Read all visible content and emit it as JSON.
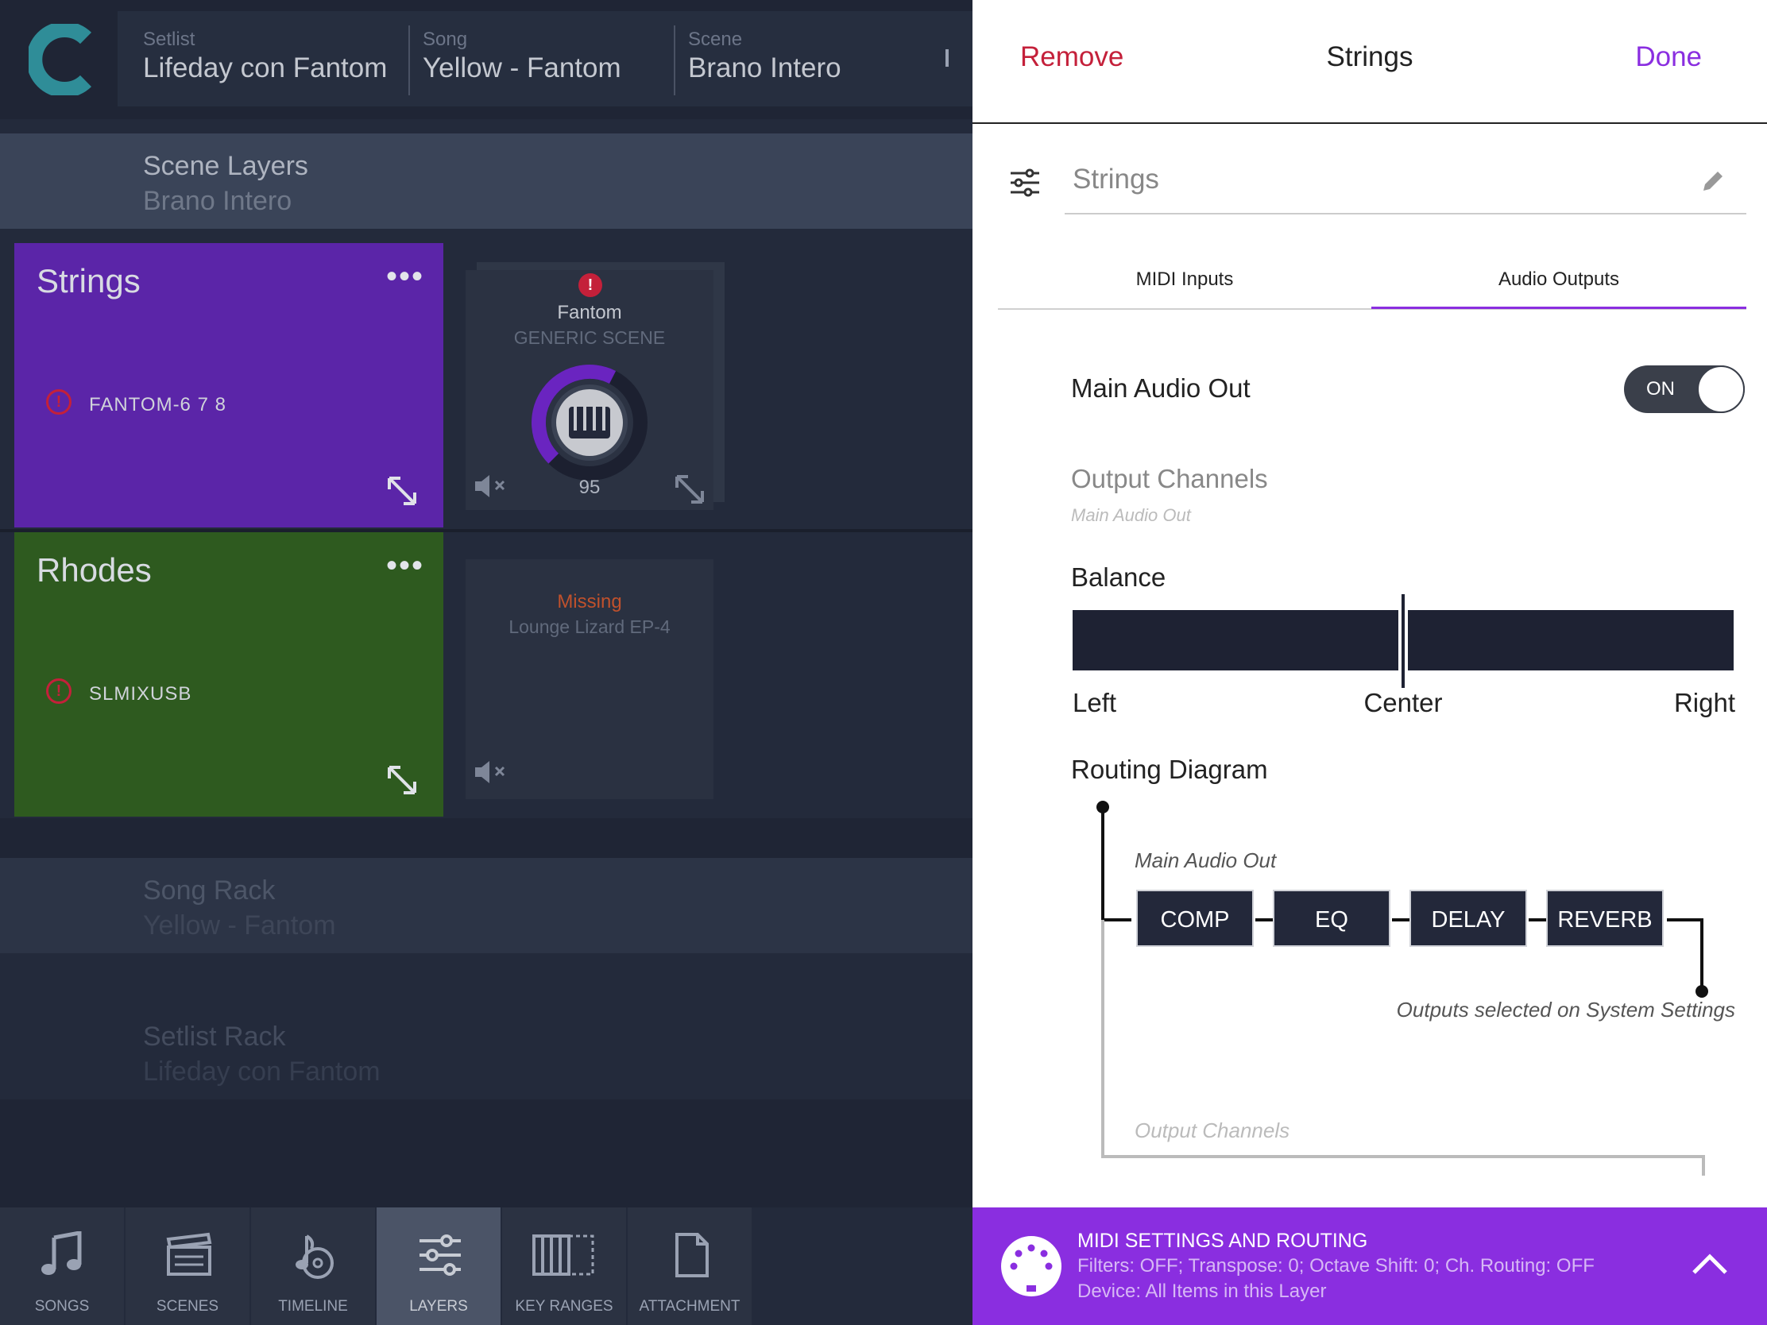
{
  "header": {
    "crumbs": [
      {
        "label": "Setlist",
        "value": "Lifeday con Fantom"
      },
      {
        "label": "Song",
        "value": "Yellow - Fantom"
      },
      {
        "label": "Scene",
        "value": "Brano Intero"
      }
    ]
  },
  "scene_layers": {
    "title": "Scene Layers",
    "subtitle": "Brano Intero"
  },
  "layers": [
    {
      "name": "Strings",
      "device": "FANTOM-6 7 8",
      "color": "#5b25a8",
      "plugin": {
        "name": "Fantom",
        "subtitle": "GENERIC SCENE",
        "volume": "95",
        "volume_level": 0.6
      }
    },
    {
      "name": "Rhodes",
      "device": "SLMIXUSB",
      "color": "#2e5a1f",
      "plugin": {
        "status": "Missing",
        "name": "Lounge Lizard EP-4"
      }
    }
  ],
  "layer_menu_label": "•••",
  "song_rack": {
    "title": "Song Rack",
    "subtitle": "Yellow - Fantom"
  },
  "setlist_rack": {
    "title": "Setlist Rack",
    "subtitle": "Lifeday con Fantom"
  },
  "tabs": [
    {
      "label": "SONGS",
      "icon": "music-note-icon"
    },
    {
      "label": "SCENES",
      "icon": "clapperboard-icon"
    },
    {
      "label": "TIMELINE",
      "icon": "timeline-icon"
    },
    {
      "label": "LAYERS",
      "icon": "sliders-icon",
      "active": true
    },
    {
      "label": "KEY RANGES",
      "icon": "keyboard-icon"
    },
    {
      "label": "ATTACHMENT",
      "icon": "document-icon"
    }
  ],
  "panel": {
    "remove_label": "Remove",
    "title": "Strings",
    "done_label": "Done",
    "name_field_value": "Strings",
    "tabs": [
      "MIDI Inputs",
      "Audio Outputs"
    ],
    "active_tab": "Audio Outputs",
    "main_audio_out_label": "Main Audio Out",
    "toggle_label": "ON",
    "toggle_on": true,
    "output_channels_label": "Output Channels",
    "output_channels_value": "Main Audio Out",
    "balance_label": "Balance",
    "balance_value": 0.5,
    "balance_left": "Left",
    "balance_center": "Center",
    "balance_right": "Right",
    "routing_label": "Routing Diagram",
    "routing_source": "Main Audio Out",
    "effects": [
      "COMP",
      "EQ",
      "DELAY",
      "REVERB"
    ],
    "routing_note": "Outputs selected on System Settings",
    "routing_output_channels": "Output Channels"
  },
  "midi_bar": {
    "title": "MIDI SETTINGS AND ROUTING",
    "line1": "Filters: OFF; Transpose: 0; Octave Shift: 0; Ch. Routing: OFF",
    "line2": "Device: All Items in this Layer"
  },
  "colors": {
    "accent": "#8a2ee0",
    "remove": "#c4203a",
    "strings": "#5b25a8",
    "rhodes": "#2e5a1f",
    "missing": "#c0512c"
  }
}
